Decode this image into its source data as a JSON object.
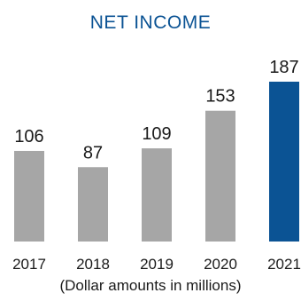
{
  "colors": {
    "title": "#0b5394",
    "bar_default": "#a6a6a6",
    "bar_highlight": "#0b5394",
    "text": "#1a1a1a"
  },
  "chart_data": {
    "type": "bar",
    "title": "NET INCOME",
    "note": "(Dollar amounts in millions)",
    "xlabel": "",
    "ylabel": "",
    "categories": [
      "2017",
      "2018",
      "2019",
      "2020",
      "2021"
    ],
    "values": [
      106,
      87,
      109,
      153,
      187
    ],
    "highlight_index": 4,
    "ylim": [
      0,
      187
    ],
    "grid": false,
    "legend": "none"
  }
}
